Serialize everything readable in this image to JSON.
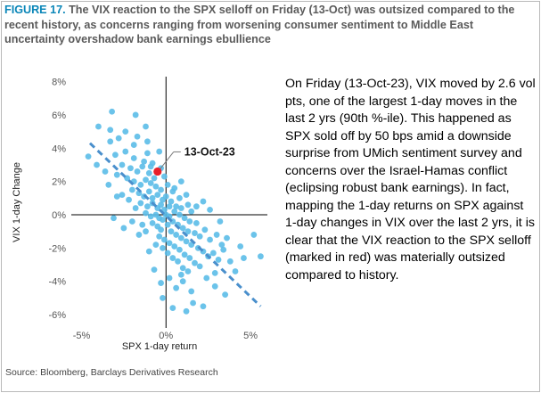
{
  "figure": {
    "label": "FIGURE 17.",
    "title": " The VIX reaction to the SPX selloff  on Friday (13-Oct) was outsized compared to the recent history, as concerns ranging from worsening consumer sentiment to Middle East uncertainty overshadow bank earnings ebullience",
    "commentary": "On Friday (13-Oct-23), VIX moved by 2.6 vol pts, one of the largest 1-day moves in the last 2 yrs (90th %-ile). This happened as SPX sold off by 50 bps amid a downside surprise from UMich sentiment survey and concerns over the Israel-Hamas conflict (eclipsing robust bank earnings). In fact, mapping the 1-day returns on SPX against 1-day changes in VIX over the last 2 yrs, it is clear that the VIX reaction to the SPX selloff (marked in red) was materially outsized compared to history.",
    "source": "Source: Bloomberg, Barclays Derivatives Research"
  },
  "colors": {
    "points": "#5bbde8",
    "highlight": "#e8202a",
    "trend": "#4a8fcc",
    "label_blue": "#0a86b8",
    "axis": "#000000",
    "tick_text": "#555555"
  },
  "chart_data": {
    "type": "scatter",
    "title": "",
    "xlabel": "SPX 1-day return",
    "ylabel": "VIX 1-day Change",
    "xlim": [
      -5.5,
      6.0
    ],
    "ylim": [
      -6.8,
      8.3
    ],
    "x_ticks": [
      -5,
      0,
      5
    ],
    "x_tick_labels": [
      "-5%",
      "0%",
      "5%"
    ],
    "y_ticks": [
      8,
      6,
      4,
      2,
      0,
      -2,
      -4,
      -6
    ],
    "y_tick_labels": [
      "8%",
      "6%",
      "4%",
      "2%",
      "0%",
      "-2%",
      "-4%",
      "-6%"
    ],
    "grid": false,
    "legend": "none",
    "trendline": {
      "style": "dashed",
      "x": [
        -4.5,
        5.6
      ],
      "y": [
        4.3,
        -5.5
      ]
    },
    "annotation": {
      "text": "13-Oct-23",
      "x": -0.5,
      "y": 2.6
    },
    "highlight": {
      "x": -0.5,
      "y": 2.6
    },
    "points": [
      [
        -3.2,
        6.2
      ],
      [
        -1.8,
        6.0
      ],
      [
        -4.0,
        5.3
      ],
      [
        -3.3,
        5.1
      ],
      [
        -2.4,
        5.0
      ],
      [
        -1.2,
        5.3
      ],
      [
        -2.8,
        4.6
      ],
      [
        -3.3,
        4.4
      ],
      [
        -1.9,
        4.2
      ],
      [
        -4.6,
        3.5
      ],
      [
        -3.0,
        3.6
      ],
      [
        -2.4,
        3.8
      ],
      [
        -1.9,
        3.4
      ],
      [
        -1.3,
        3.2
      ],
      [
        -1.1,
        3.7
      ],
      [
        -0.8,
        3.1
      ],
      [
        -2.6,
        3.0
      ],
      [
        -2.1,
        2.8
      ],
      [
        -1.7,
        2.6
      ],
      [
        -1.4,
        2.9
      ],
      [
        -1.0,
        2.5
      ],
      [
        -0.7,
        2.2
      ],
      [
        -0.3,
        2.8
      ],
      [
        -0.1,
        2.3
      ],
      [
        -2.9,
        2.4
      ],
      [
        -2.3,
        2.2
      ],
      [
        -1.9,
        2.0
      ],
      [
        -1.5,
        1.8
      ],
      [
        -1.2,
        2.1
      ],
      [
        -0.9,
        1.9
      ],
      [
        -0.6,
        1.7
      ],
      [
        -0.3,
        1.5
      ],
      [
        0.1,
        1.8
      ],
      [
        0.4,
        1.4
      ],
      [
        0.8,
        1.0
      ],
      [
        1.3,
        0.6
      ],
      [
        -2.0,
        1.5
      ],
      [
        -1.6,
        1.3
      ],
      [
        -1.3,
        1.1
      ],
      [
        -1.0,
        1.4
      ],
      [
        -0.8,
        1.0
      ],
      [
        -0.5,
        1.2
      ],
      [
        -0.2,
        0.9
      ],
      [
        0.0,
        1.1
      ],
      [
        0.3,
        0.8
      ],
      [
        0.6,
        0.5
      ],
      [
        0.9,
        0.4
      ],
      [
        1.5,
        0.2
      ],
      [
        -1.5,
        0.7
      ],
      [
        -1.1,
        0.5
      ],
      [
        -0.8,
        0.7
      ],
      [
        -0.5,
        0.4
      ],
      [
        -0.3,
        0.6
      ],
      [
        -0.1,
        0.3
      ],
      [
        0.2,
        0.5
      ],
      [
        0.5,
        0.2
      ],
      [
        0.8,
        0.0
      ],
      [
        1.1,
        -0.2
      ],
      [
        1.4,
        -0.4
      ],
      [
        1.8,
        -0.5
      ],
      [
        -1.2,
        0.1
      ],
      [
        -0.9,
        -0.1
      ],
      [
        -0.6,
        0.0
      ],
      [
        -0.4,
        -0.2
      ],
      [
        -0.2,
        -0.3
      ],
      [
        0.0,
        0.0
      ],
      [
        0.2,
        -0.1
      ],
      [
        0.4,
        -0.4
      ],
      [
        0.7,
        -0.6
      ],
      [
        1.0,
        -0.8
      ],
      [
        1.3,
        -1.0
      ],
      [
        1.7,
        -1.1
      ],
      [
        2.0,
        -1.3
      ],
      [
        2.3,
        -0.9
      ],
      [
        2.6,
        -1.5
      ],
      [
        3.0,
        -1.2
      ],
      [
        3.3,
        -1.8
      ],
      [
        3.6,
        -1.4
      ],
      [
        -0.8,
        -0.5
      ],
      [
        -0.5,
        -0.7
      ],
      [
        -0.3,
        -0.9
      ],
      [
        0.1,
        -0.6
      ],
      [
        0.3,
        -1.0
      ],
      [
        0.6,
        -1.2
      ],
      [
        0.9,
        -1.4
      ],
      [
        1.2,
        -1.6
      ],
      [
        1.5,
        -1.8
      ],
      [
        1.9,
        -2.0
      ],
      [
        2.2,
        -2.2
      ],
      [
        2.5,
        -2.5
      ],
      [
        2.8,
        -2.3
      ],
      [
        3.1,
        -2.7
      ],
      [
        3.4,
        -2.1
      ],
      [
        -0.4,
        -1.3
      ],
      [
        -0.1,
        -1.5
      ],
      [
        0.2,
        -1.7
      ],
      [
        0.5,
        -1.9
      ],
      [
        0.8,
        -2.1
      ],
      [
        1.1,
        -2.4
      ],
      [
        1.4,
        -2.6
      ],
      [
        1.7,
        -2.9
      ],
      [
        2.0,
        -3.1
      ],
      [
        -0.2,
        -2.0
      ],
      [
        0.1,
        -2.3
      ],
      [
        0.4,
        -2.6
      ],
      [
        0.7,
        -2.8
      ],
      [
        1.0,
        -3.2
      ],
      [
        1.3,
        -3.4
      ],
      [
        -1.2,
        -1.0
      ],
      [
        -1.0,
        -2.2
      ],
      [
        -0.6,
        -1.8
      ],
      [
        -1.4,
        -0.6
      ],
      [
        -1.8,
        0.4
      ],
      [
        -2.2,
        0.9
      ],
      [
        -2.6,
        1.2
      ],
      [
        -3.4,
        1.8
      ],
      [
        -3.6,
        2.6
      ],
      [
        -4.1,
        3.0
      ],
      [
        -2.0,
        -0.4
      ],
      [
        -1.6,
        -1.2
      ],
      [
        -0.7,
        -3.3
      ],
      [
        -0.3,
        -4.1
      ],
      [
        0.2,
        -3.8
      ],
      [
        0.6,
        -4.4
      ],
      [
        1.0,
        -4.0
      ],
      [
        1.5,
        -4.6
      ],
      [
        2.4,
        -3.8
      ],
      [
        2.9,
        -3.5
      ],
      [
        1.6,
        -5.3
      ],
      [
        2.2,
        -5.5
      ],
      [
        1.2,
        -5.8
      ],
      [
        0.9,
        -3.6
      ],
      [
        3.8,
        -2.8
      ],
      [
        4.1,
        -3.4
      ],
      [
        4.4,
        -1.9
      ],
      [
        4.6,
        -2.6
      ],
      [
        5.2,
        -1.2
      ],
      [
        5.6,
        -2.5
      ],
      [
        3.2,
        -0.4
      ],
      [
        2.6,
        0.3
      ],
      [
        2.2,
        0.8
      ],
      [
        1.8,
        0.5
      ],
      [
        2.9,
        -4.3
      ],
      [
        3.5,
        -4.8
      ],
      [
        -0.9,
        2.9
      ],
      [
        -1.1,
        4.4
      ],
      [
        -1.7,
        4.7
      ],
      [
        -2.9,
        1.1
      ],
      [
        -3.1,
        -0.2
      ],
      [
        -2.5,
        -0.8
      ],
      [
        0.5,
        1.6
      ],
      [
        0.9,
        2.0
      ],
      [
        1.2,
        1.2
      ],
      [
        -0.4,
        3.8
      ],
      [
        -0.2,
        -5.0
      ],
      [
        0.4,
        -5.6
      ]
    ]
  }
}
